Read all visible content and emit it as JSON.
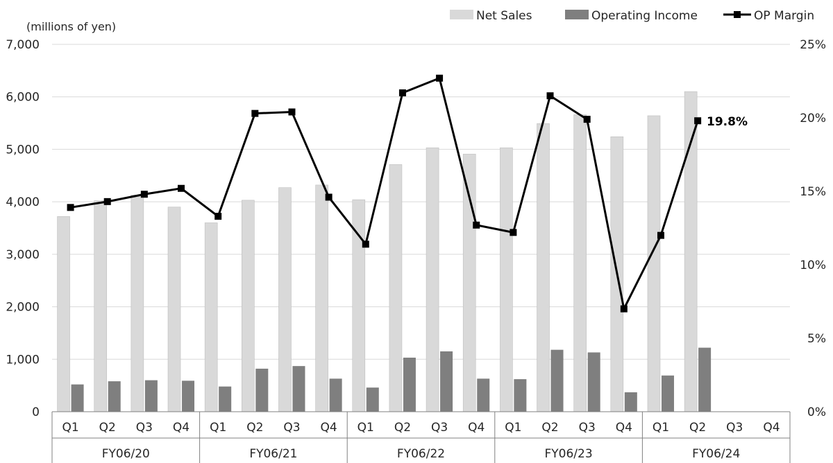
{
  "chart_data": {
    "type": "bar",
    "unit_label": "(millions of yen)",
    "years": [
      "FY06/20",
      "FY06/21",
      "FY06/22",
      "FY06/23",
      "FY06/24"
    ],
    "quarters": [
      "Q1",
      "Q2",
      "Q3",
      "Q4"
    ],
    "categories": [
      "FY06/20 Q1",
      "FY06/20 Q2",
      "FY06/20 Q3",
      "FY06/20 Q4",
      "FY06/21 Q1",
      "FY06/21 Q2",
      "FY06/21 Q3",
      "FY06/21 Q4",
      "FY06/22 Q1",
      "FY06/22 Q2",
      "FY06/22 Q3",
      "FY06/22 Q4",
      "FY06/23 Q1",
      "FY06/23 Q2",
      "FY06/23 Q3",
      "FY06/23 Q4",
      "FY06/24 Q1",
      "FY06/24 Q2",
      "FY06/24 Q3",
      "FY06/24 Q4"
    ],
    "series": [
      {
        "name": "Net Sales",
        "kind": "bar",
        "axis": "left",
        "color": "#d9d9d9",
        "values": [
          3720,
          4020,
          4130,
          3900,
          3600,
          4030,
          4270,
          4320,
          4040,
          4710,
          5030,
          4910,
          5030,
          5490,
          5660,
          5240,
          5640,
          6100,
          null,
          null
        ]
      },
      {
        "name": "Operating Income",
        "kind": "bar",
        "axis": "left",
        "color": "#7f7f7f",
        "values": [
          520,
          580,
          600,
          590,
          480,
          820,
          870,
          630,
          460,
          1030,
          1150,
          630,
          620,
          1180,
          1130,
          370,
          690,
          1220,
          null,
          null
        ]
      },
      {
        "name": "OP Margin",
        "kind": "line",
        "axis": "right",
        "color": "#000000",
        "values": [
          13.9,
          14.3,
          14.8,
          15.2,
          13.3,
          20.3,
          20.4,
          14.6,
          11.4,
          21.7,
          22.7,
          12.7,
          12.2,
          21.5,
          19.9,
          7.0,
          12.0,
          19.8,
          null,
          null
        ]
      }
    ],
    "callout_label": "19.8%",
    "y_left": {
      "min": 0,
      "max": 7000,
      "ticks": [
        "0",
        "1,000",
        "2,000",
        "3,000",
        "4,000",
        "5,000",
        "6,000",
        "7,000"
      ]
    },
    "y_right": {
      "min": 0,
      "max": 25,
      "ticks": [
        "0%",
        "5%",
        "10%",
        "15%",
        "20%",
        "25%"
      ]
    },
    "grid": true,
    "legend_position": "top-right"
  }
}
